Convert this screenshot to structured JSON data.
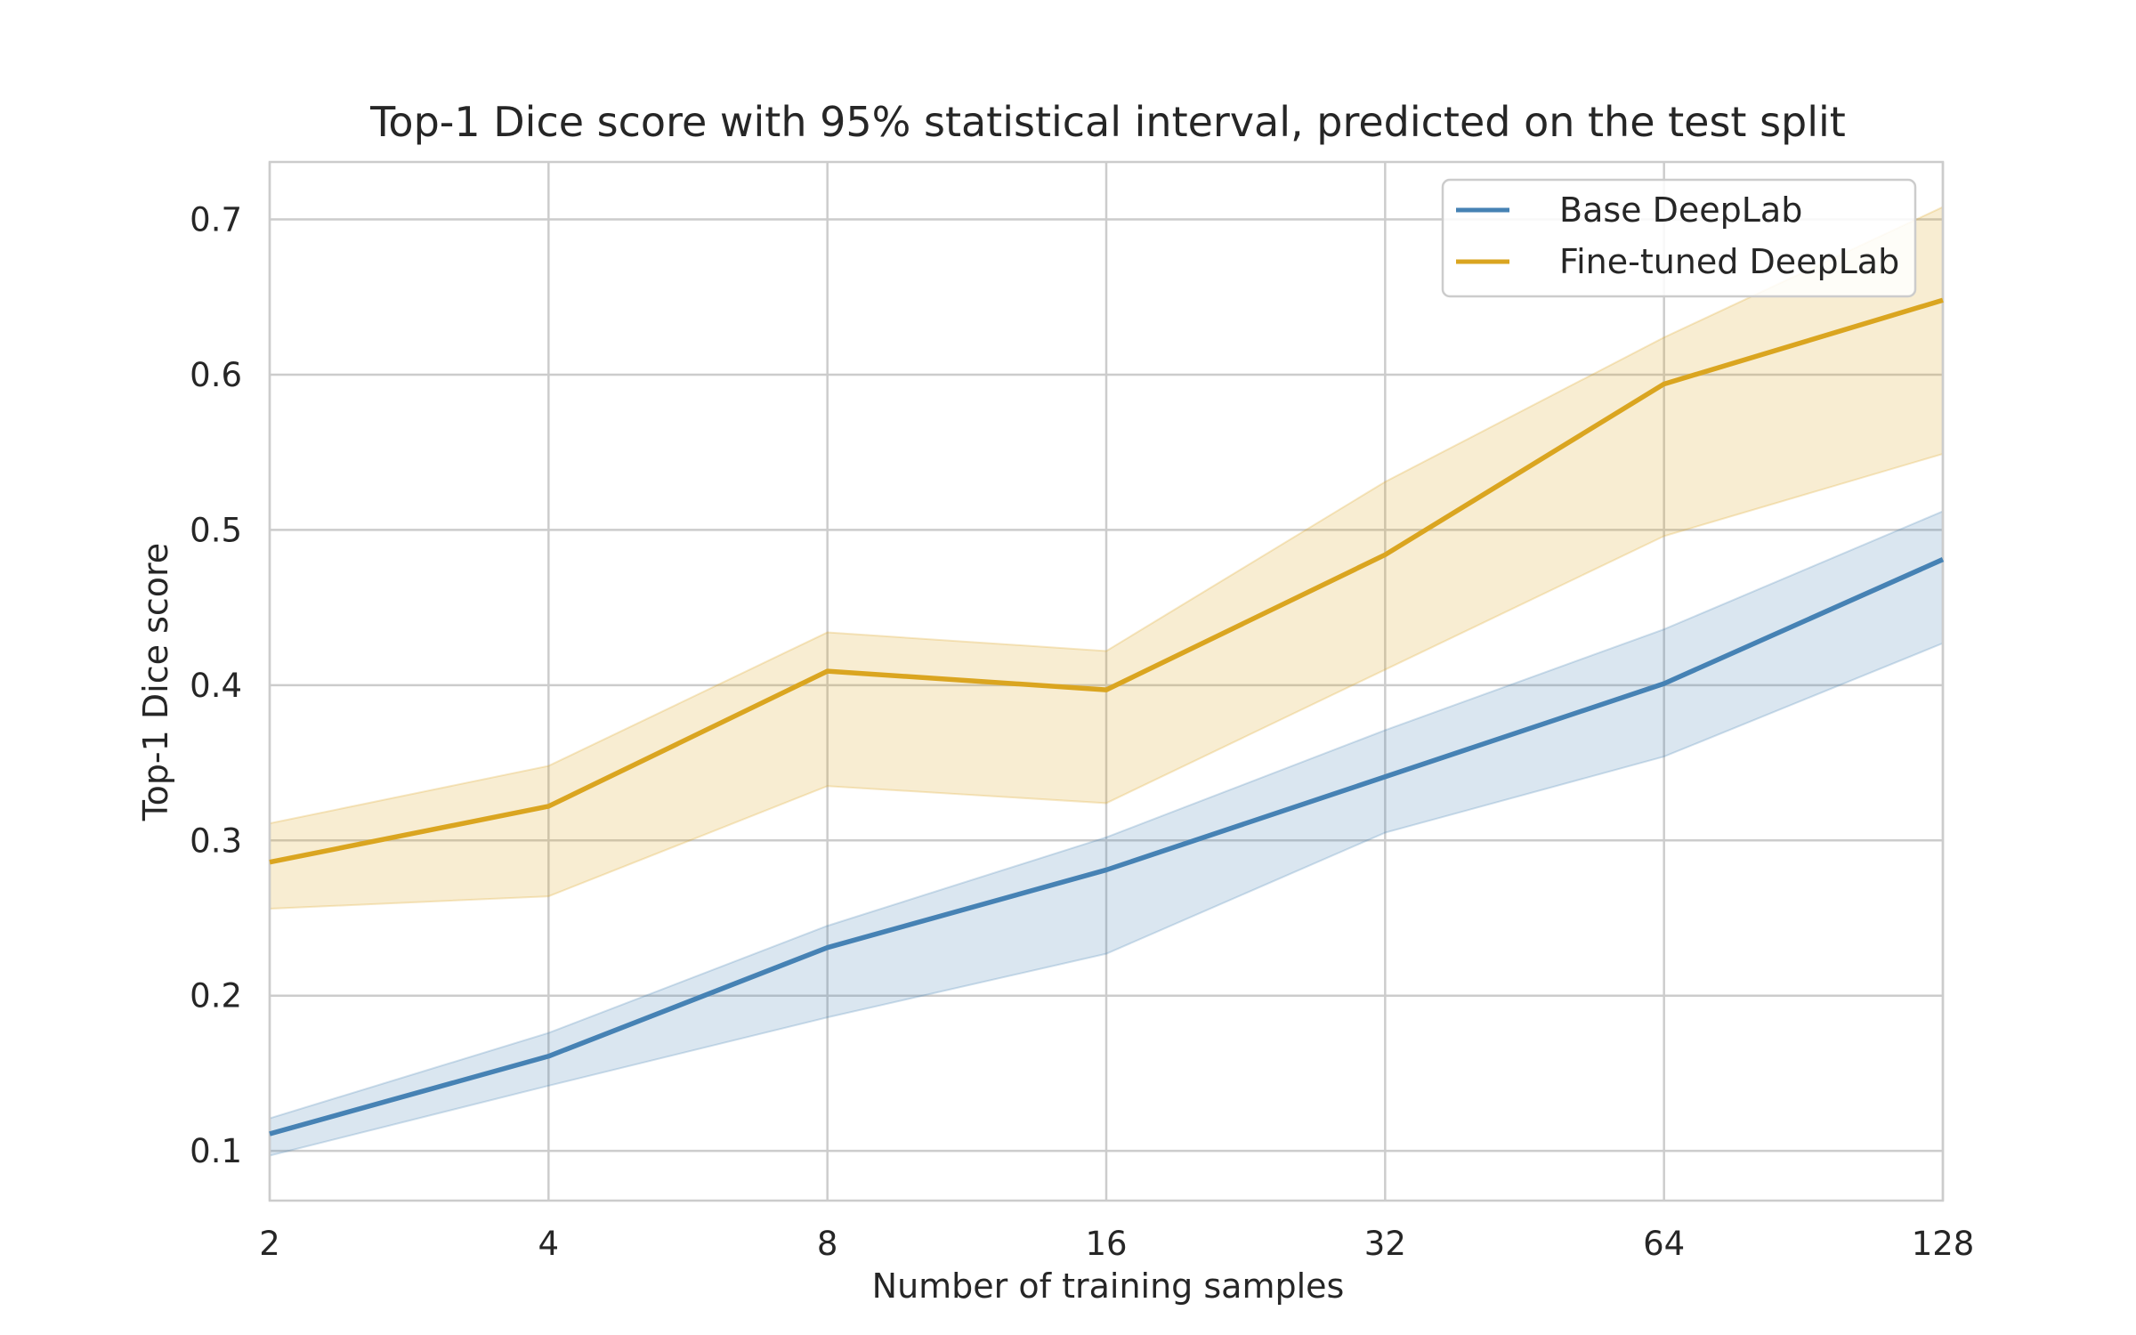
{
  "chart_data": {
    "type": "line",
    "title": "Top-1 Dice score with 95% statistical interval, predicted on the test split",
    "xlabel": "Number of training samples",
    "ylabel": "Top-1 Dice score",
    "x_scale": "log2",
    "x": [
      2,
      4,
      8,
      16,
      32,
      64,
      128
    ],
    "x_tick_labels": [
      "2",
      "4",
      "8",
      "16",
      "32",
      "64",
      "128"
    ],
    "y_ticks": [
      0.1,
      0.2,
      0.3,
      0.4,
      0.5,
      0.6,
      0.7
    ],
    "y_tick_labels": [
      "0.1",
      "0.2",
      "0.3",
      "0.4",
      "0.5",
      "0.6",
      "0.7"
    ],
    "xlim": [
      2,
      128
    ],
    "ylim": [
      0.068,
      0.737
    ],
    "grid": true,
    "legend_position": "top-right",
    "series": [
      {
        "name": "Base DeepLab",
        "color": "#4682b4",
        "values": [
          0.111,
          0.161,
          0.231,
          0.281,
          0.341,
          0.401,
          0.481
        ],
        "lower": [
          0.097,
          0.142,
          0.186,
          0.227,
          0.305,
          0.354,
          0.427
        ],
        "upper": [
          0.121,
          0.176,
          0.245,
          0.302,
          0.371,
          0.436,
          0.512
        ]
      },
      {
        "name": "Fine-tuned DeepLab",
        "color": "#daa520",
        "values": [
          0.286,
          0.322,
          0.409,
          0.397,
          0.484,
          0.594,
          0.648
        ],
        "lower": [
          0.256,
          0.264,
          0.335,
          0.324,
          0.41,
          0.496,
          0.549
        ],
        "upper": [
          0.311,
          0.348,
          0.434,
          0.422,
          0.531,
          0.624,
          0.708
        ]
      }
    ]
  }
}
